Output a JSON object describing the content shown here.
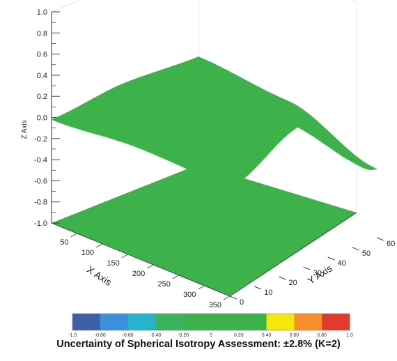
{
  "chart_data": {
    "type": "surface3d",
    "title": "",
    "caption": "Uncertainty of Spherical Isotropy Assessment: ±2.8% (K=2)",
    "x_axis": {
      "label": "X Axis",
      "range": [
        0,
        350
      ],
      "ticks": [
        "50",
        "100",
        "150",
        "200",
        "250",
        "300",
        "350"
      ]
    },
    "y_axis": {
      "label": "Y Axis",
      "range": [
        0,
        60
      ],
      "ticks": [
        "0",
        "10",
        "20",
        "30",
        "40",
        "50",
        "60"
      ]
    },
    "z_axis": {
      "label": "Z Axis",
      "range": [
        -1.0,
        1.0
      ],
      "ticks": [
        "1.0",
        "0.8",
        "0.6",
        "0.4",
        "0.2",
        "0.0",
        "-0.2",
        "-0.4",
        "-0.6",
        "-0.8",
        "-1.0"
      ]
    },
    "surface": {
      "color": "#3db24a",
      "x": [
        0,
        175,
        350
      ],
      "y": [
        0,
        30,
        60
      ],
      "z": [
        [
          -0.02,
          0.05,
          0.03
        ],
        [
          0.05,
          0.15,
          0.35
        ],
        [
          0.02,
          -0.05,
          -0.35
        ]
      ],
      "projection": {
        "color": "#3db24a",
        "z_level": -1.0
      }
    },
    "colorbar": {
      "ticks": [
        "-1.0",
        "-0.80",
        "-0.60",
        "-0.40",
        "-0.20",
        "0",
        "0.20",
        "0.40",
        "0.60",
        "0.80",
        "1.0"
      ],
      "segments": [
        "#3f5ea8",
        "#3b8fdb",
        "#27b3c9",
        "#3cb35f",
        "#3db24a",
        "#3db24a",
        "#3db24a",
        "#f5e60c",
        "#f48f2a",
        "#e23b2e"
      ]
    }
  }
}
